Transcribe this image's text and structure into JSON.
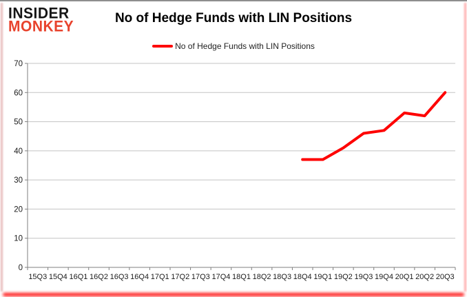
{
  "header": {
    "logo_line1": "INSIDER",
    "logo_line2": "MONKEY",
    "title": "No of Hedge Funds with LIN Positions"
  },
  "legend": {
    "label": "No of Hedge Funds with LIN Positions"
  },
  "colors": {
    "series_red": "#fe0000",
    "logo_red": "#e8432d",
    "gridline": "#c3c3c3",
    "axis": "#7f7f7f",
    "tick_label": "#1a1a1a"
  },
  "chart_data": {
    "type": "line",
    "title": "No of Hedge Funds with LIN Positions",
    "categories": [
      "15Q3",
      "15Q4",
      "16Q1",
      "16Q2",
      "16Q3",
      "16Q4",
      "17Q1",
      "17Q2",
      "17Q3",
      "17Q4",
      "18Q1",
      "18Q2",
      "18Q3",
      "18Q4",
      "19Q1",
      "19Q2",
      "19Q3",
      "19Q4",
      "20Q1",
      "20Q2",
      "20Q3"
    ],
    "series": [
      {
        "name": "No of Hedge Funds with LIN Positions",
        "color": "#fe0000",
        "values": [
          null,
          null,
          null,
          null,
          null,
          null,
          null,
          null,
          null,
          null,
          null,
          null,
          null,
          37,
          37,
          41,
          46,
          47,
          53,
          52,
          60
        ]
      }
    ],
    "xlabel": "",
    "ylabel": "",
    "ylim": [
      0,
      70
    ],
    "ytick_interval": 10,
    "grid": "horizontal",
    "legend_position": "top-center"
  }
}
